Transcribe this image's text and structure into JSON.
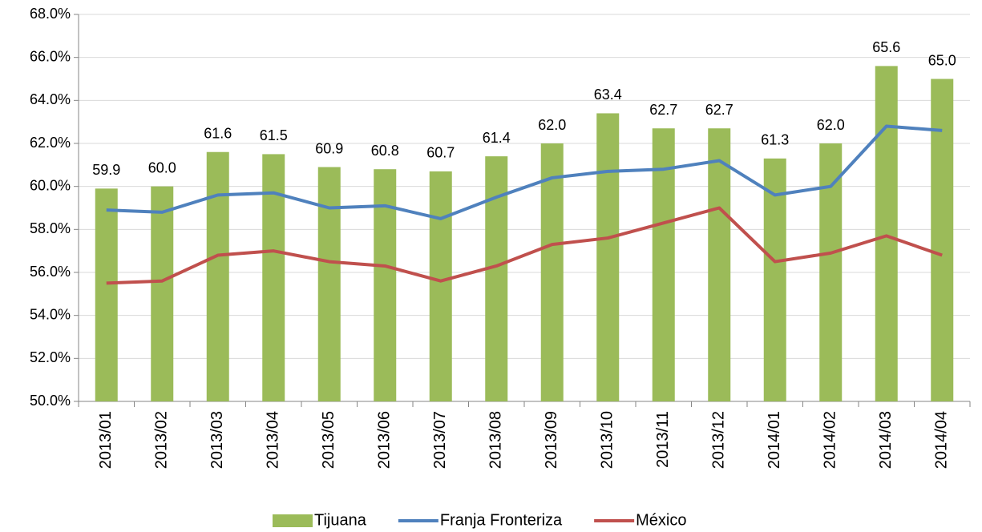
{
  "chart_data": {
    "type": "bar",
    "categories": [
      "2013/01",
      "2013/02",
      "2013/03",
      "2013/04",
      "2013/05",
      "2013/06",
      "2013/07",
      "2013/08",
      "2013/09",
      "2013/10",
      "2013/11",
      "2013/12",
      "2014/01",
      "2014/02",
      "2014/03",
      "2014/04"
    ],
    "series": [
      {
        "name": "Tijuana",
        "type": "bar",
        "color": "#9bbb59",
        "values": [
          59.9,
          60.0,
          61.6,
          61.5,
          60.9,
          60.8,
          60.7,
          61.4,
          62.0,
          63.4,
          62.7,
          62.7,
          61.3,
          62.0,
          65.6,
          65.0
        ],
        "value_labels": [
          "59.9",
          "60.0",
          "61.6",
          "61.5",
          "60.9",
          "60.8",
          "60.7",
          "61.4",
          "62.0",
          "63.4",
          "62.7",
          "62.7",
          "61.3",
          "62.0",
          "65.6",
          "65.0"
        ]
      },
      {
        "name": "Franja Fronteriza",
        "type": "line",
        "color": "#4f81bd",
        "values": [
          58.9,
          58.8,
          59.6,
          59.7,
          59.0,
          59.1,
          58.5,
          59.5,
          60.4,
          60.7,
          60.8,
          61.2,
          59.6,
          60.0,
          62.8,
          62.6
        ]
      },
      {
        "name": "México",
        "type": "line",
        "color": "#c0504d",
        "values": [
          55.5,
          55.6,
          56.8,
          57.0,
          56.5,
          56.3,
          55.6,
          56.3,
          57.3,
          57.6,
          58.3,
          59.0,
          56.5,
          56.9,
          57.7,
          56.8
        ]
      }
    ],
    "ylim": [
      50,
      68
    ],
    "yticks": [
      {
        "value": 50,
        "label": "50.0%"
      },
      {
        "value": 52,
        "label": "52.0%"
      },
      {
        "value": 54,
        "label": "54.0%"
      },
      {
        "value": 56,
        "label": "56.0%"
      },
      {
        "value": 58,
        "label": "58.0%"
      },
      {
        "value": 60,
        "label": "60.0%"
      },
      {
        "value": 62,
        "label": "62.0%"
      },
      {
        "value": 64,
        "label": "64.0%"
      },
      {
        "value": 66,
        "label": "66.0%"
      },
      {
        "value": 68,
        "label": "68.0%"
      }
    ],
    "grid": true,
    "legend": "bottom"
  }
}
